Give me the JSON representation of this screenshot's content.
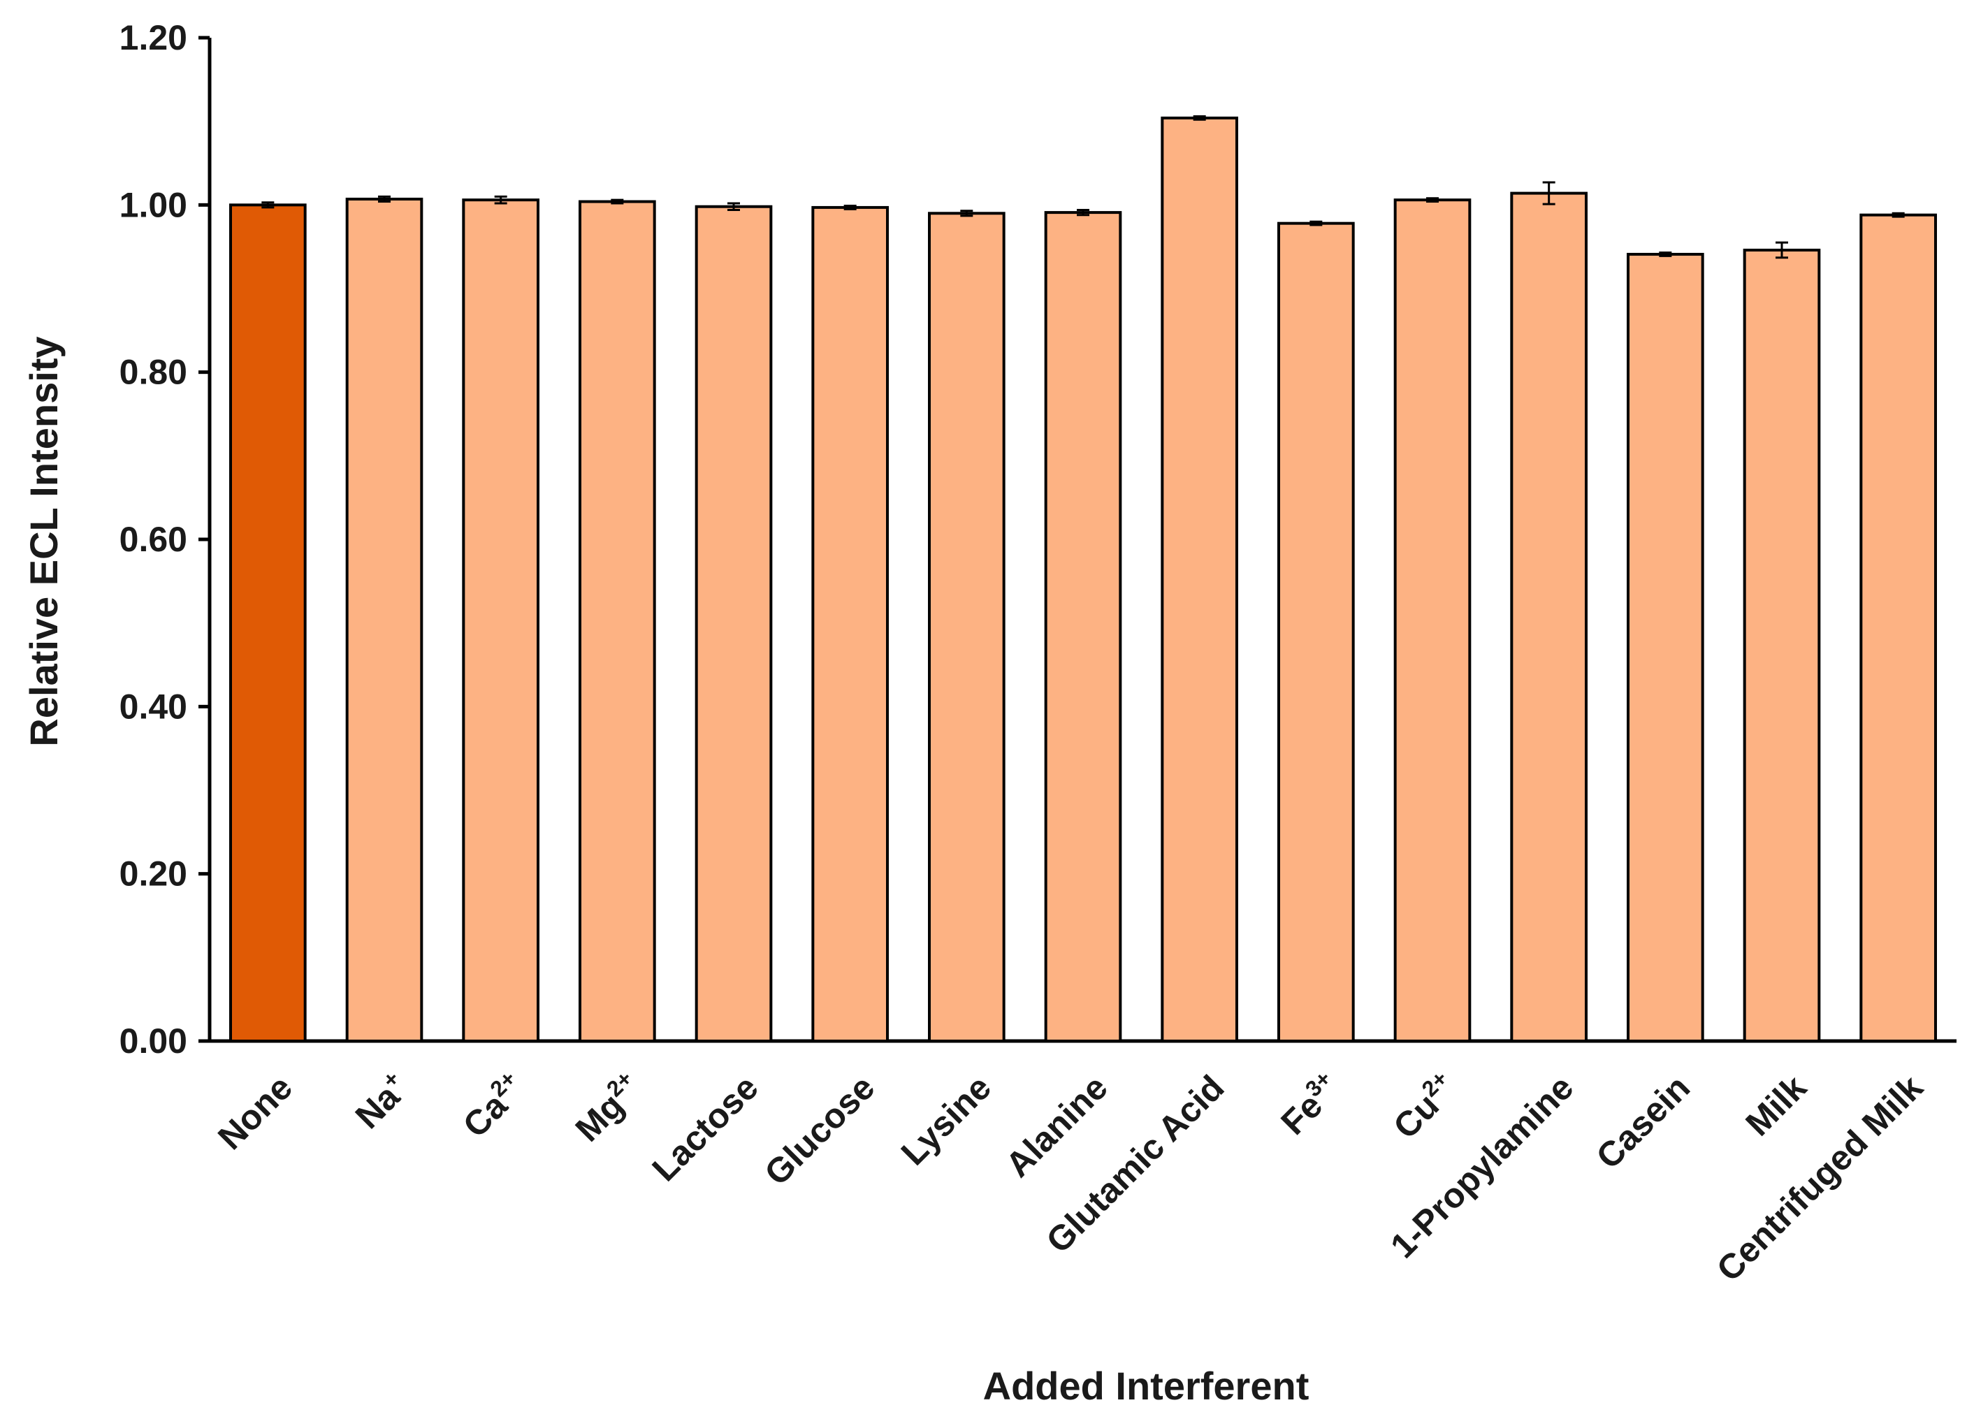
{
  "chart_data": {
    "type": "bar",
    "title": "",
    "xlabel": "Added Interferent",
    "ylabel": "Relative ECL Intensity",
    "ylim": [
      0,
      1.2
    ],
    "yticks": [
      "0.00",
      "0.20",
      "0.40",
      "0.60",
      "0.80",
      "1.00",
      "1.20"
    ],
    "grid": false,
    "legend": "none",
    "categories": [
      {
        "base": "None",
        "sup": ""
      },
      {
        "base": "Na",
        "sup": "+"
      },
      {
        "base": "Ca",
        "sup": "2+"
      },
      {
        "base": "Mg",
        "sup": "2+"
      },
      {
        "base": "Lactose",
        "sup": ""
      },
      {
        "base": "Glucose",
        "sup": ""
      },
      {
        "base": "Lysine",
        "sup": ""
      },
      {
        "base": "Alanine",
        "sup": ""
      },
      {
        "base": "Glutamic Acid",
        "sup": ""
      },
      {
        "base": "Fe",
        "sup": "3+"
      },
      {
        "base": "Cu",
        "sup": "2+"
      },
      {
        "base": "1-Propylamine",
        "sup": ""
      },
      {
        "base": "Casein",
        "sup": ""
      },
      {
        "base": "Milk",
        "sup": ""
      },
      {
        "base": "Centrifuged Milk",
        "sup": ""
      }
    ],
    "values": [
      1.0,
      1.007,
      1.006,
      1.004,
      0.998,
      0.997,
      0.99,
      0.991,
      1.104,
      0.978,
      1.006,
      1.014,
      0.941,
      0.946,
      0.988
    ],
    "errors": [
      0.003,
      0.003,
      0.004,
      0.002,
      0.004,
      0.002,
      0.003,
      0.003,
      0.002,
      0.002,
      0.002,
      0.013,
      0.002,
      0.009,
      0.002
    ],
    "colors": {
      "highlight": "#e05a05",
      "bar": "#fdb283",
      "outline": "#000000"
    },
    "highlight_index": 0
  }
}
